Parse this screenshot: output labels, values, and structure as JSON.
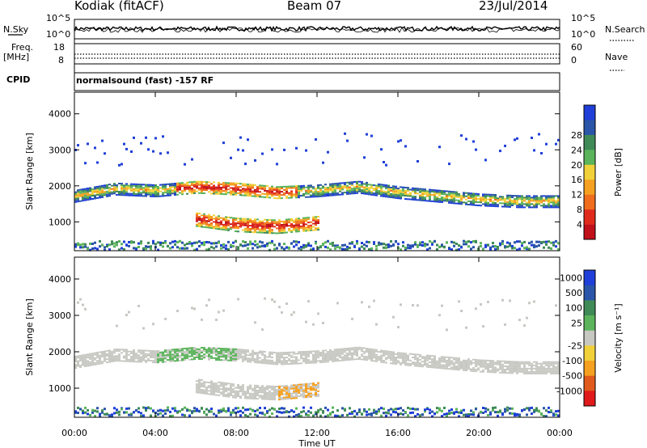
{
  "header": {
    "station": "Kodiak  (fitACF)",
    "beam": "Beam 07",
    "date": "23/Jul/2014"
  },
  "control": {
    "nsky_label": "N.Sky",
    "nsky_ticks": [
      "10^5",
      "10^0"
    ],
    "nsearch_label": "N.Search",
    "nsearch_ticks": [
      "10^5",
      "10^0"
    ],
    "freq_label": "Freq.",
    "freq_unit": "[MHz]",
    "freq_ticks": [
      "18",
      "8"
    ],
    "nave_label": "Nave",
    "nave_ticks": [
      "60",
      "0"
    ],
    "cpid_label": "CPID",
    "cpid_value": "normalsound (fast) -157 RF"
  },
  "colors": {
    "power_scale": [
      "#1f3fd8",
      "#2a55a8",
      "#3f8a57",
      "#5bb35b",
      "#f0d13a",
      "#f5a020",
      "#ef6d1c",
      "#e02b1c",
      "#c0101a"
    ],
    "velocity_scale": [
      "#1f3fd8",
      "#2a55a8",
      "#3f8a57",
      "#5bb35b",
      "#c8c8c3",
      "#f0d13a",
      "#f5a020",
      "#e05a1c",
      "#e01a1a"
    ],
    "ground_scatter": "#c8c8c3"
  },
  "chart_data": [
    {
      "type": "heatmap",
      "title": "Power",
      "ylabel": "Slant Range [km]",
      "xlabel": "Time UT",
      "xlim": [
        "00:00",
        "24:00"
      ],
      "ylim": [
        200,
        4600
      ],
      "x_ticks": [
        "00:00",
        "04:00",
        "08:00",
        "12:00",
        "16:00",
        "20:00",
        "00:00"
      ],
      "y_ticks": [
        "1000",
        "2000",
        "3000",
        "4000"
      ],
      "colorbar_label": "Power [dB]",
      "colorbar_ticks": [
        "4",
        "8",
        "12",
        "16",
        "20",
        "24",
        "28"
      ],
      "bands": [
        {
          "name": "upper",
          "x": [
            0,
            2,
            4,
            6,
            8,
            10,
            12,
            14,
            16,
            18,
            20,
            22,
            24
          ],
          "y": [
            1700,
            1900,
            1850,
            1950,
            1900,
            1800,
            1850,
            1950,
            1800,
            1700,
            1600,
            1550,
            1550
          ]
        },
        {
          "name": "lower",
          "x": [
            6,
            8,
            10,
            12
          ],
          "y": [
            1050,
            900,
            850,
            950
          ]
        }
      ]
    },
    {
      "type": "heatmap",
      "title": "Velocity",
      "ylabel": "Slant Range [km]",
      "xlabel": "Time UT",
      "xlim": [
        "00:00",
        "24:00"
      ],
      "ylim": [
        200,
        4600
      ],
      "x_ticks": [
        "00:00",
        "04:00",
        "08:00",
        "12:00",
        "16:00",
        "20:00",
        "00:00"
      ],
      "y_ticks": [
        "1000",
        "2000",
        "3000",
        "4000"
      ],
      "colorbar_label": "Velocity [m s⁻¹]",
      "colorbar_ticks": [
        "1000",
        "500",
        "100",
        "25",
        "-25",
        "-100",
        "-500",
        "-1000"
      ]
    }
  ]
}
